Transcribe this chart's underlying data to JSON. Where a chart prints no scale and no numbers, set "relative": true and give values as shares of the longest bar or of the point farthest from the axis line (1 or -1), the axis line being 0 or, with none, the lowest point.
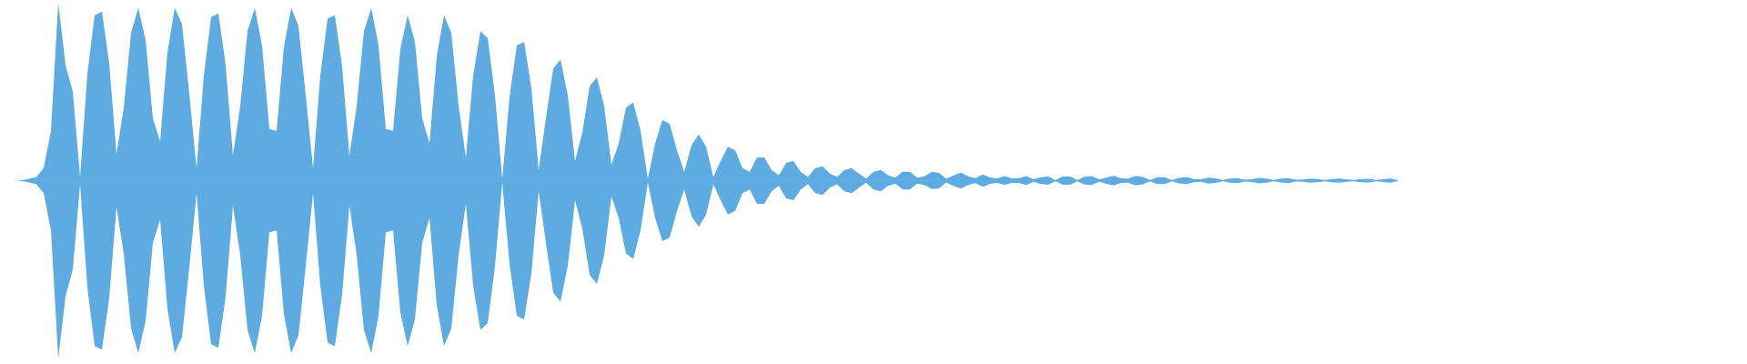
{
  "chart_data": {
    "type": "area",
    "relative": true,
    "tick_labels": false,
    "categories": [
      null,
      null,
      null,
      null,
      null,
      null,
      null,
      null,
      null,
      null,
      null,
      null,
      null,
      null,
      null,
      null,
      null,
      null,
      null,
      null,
      null,
      null,
      null,
      null,
      null,
      null,
      null,
      null,
      null,
      null,
      null,
      null,
      null,
      null,
      null,
      null,
      null,
      null,
      null,
      null,
      null,
      null,
      null,
      null,
      null,
      null,
      null,
      null,
      null,
      null,
      null,
      null,
      null,
      null,
      null,
      null,
      null,
      null,
      null,
      null,
      null,
      null,
      null,
      null,
      null,
      null,
      null,
      null,
      null,
      null,
      null,
      null,
      null,
      null,
      null,
      null,
      null,
      null,
      null,
      null,
      null,
      null,
      null,
      null,
      null,
      null,
      null,
      null,
      null,
      null,
      null,
      null,
      null,
      null,
      null,
      null,
      null,
      null,
      null,
      null,
      null,
      null,
      null,
      null,
      null,
      null,
      null,
      null,
      null,
      null,
      null,
      null,
      null,
      null,
      null,
      null,
      null,
      null,
      null,
      null,
      null,
      null,
      null,
      null,
      null,
      null,
      null,
      null,
      null,
      null,
      null,
      null,
      null,
      null,
      null,
      null,
      null,
      null,
      null,
      null,
      null,
      null,
      null,
      null,
      null,
      null,
      null,
      null,
      null,
      null,
      null,
      null,
      null,
      null,
      null,
      null,
      null,
      null,
      null,
      null,
      null,
      null,
      null,
      null,
      null,
      null,
      null,
      null,
      null,
      null,
      null,
      null,
      null,
      null,
      null,
      null,
      null,
      null,
      null,
      null,
      null,
      null,
      null,
      null,
      null,
      null,
      null,
      null,
      null,
      null
    ],
    "series": [
      {
        "color": "#5dabe1",
        "values": [
          0.003,
          0.01,
          0.02,
          0.07,
          0.28,
          1.0,
          0.65,
          0.5,
          0.02,
          0.6,
          0.93,
          0.95,
          0.66,
          0.15,
          0.41,
          0.83,
          0.97,
          0.79,
          0.35,
          0.22,
          0.72,
          0.97,
          0.88,
          0.49,
          0.07,
          0.59,
          0.92,
          0.94,
          0.65,
          0.14,
          0.42,
          0.84,
          0.97,
          0.76,
          0.29,
          0.28,
          0.75,
          0.97,
          0.87,
          0.48,
          0.07,
          0.59,
          0.91,
          0.93,
          0.64,
          0.14,
          0.42,
          0.84,
          0.97,
          0.76,
          0.29,
          0.28,
          0.74,
          0.93,
          0.78,
          0.35,
          0.21,
          0.7,
          0.93,
          0.83,
          0.42,
          0.13,
          0.59,
          0.84,
          0.8,
          0.48,
          0.01,
          0.47,
          0.76,
          0.78,
          0.52,
          0.06,
          0.35,
          0.63,
          0.68,
          0.48,
          0.11,
          0.27,
          0.53,
          0.58,
          0.42,
          0.09,
          0.21,
          0.41,
          0.44,
          0.28,
          0.01,
          0.21,
          0.34,
          0.32,
          0.17,
          0.05,
          0.2,
          0.26,
          0.19,
          0.02,
          0.11,
          0.19,
          0.17,
          0.07,
          0.05,
          0.13,
          0.13,
          0.06,
          0.03,
          0.1,
          0.11,
          0.05,
          0.02,
          0.07,
          0.08,
          0.04,
          0.02,
          0.06,
          0.07,
          0.04,
          0.012,
          0.05,
          0.06,
          0.03,
          0.017,
          0.05,
          0.05,
          0.017,
          0.024,
          0.048,
          0.043,
          0.01,
          0.029,
          0.045,
          0.024,
          0.014,
          0.035,
          0.018,
          0.013,
          0.025,
          0.013,
          0.014,
          0.025,
          0.007,
          0.019,
          0.023,
          0.004,
          0.023,
          0.023,
          0.004,
          0.022,
          0.025,
          0.006,
          0.018,
          0.027,
          0.013,
          0.012,
          0.027,
          0.02,
          0.004,
          0.019,
          0.019,
          0.004,
          0.015,
          0.02,
          0.009,
          0.007,
          0.017,
          0.013,
          0.004,
          0.012,
          0.014,
          0.005,
          0.008,
          0.015,
          0.011,
          0.004,
          0.012,
          0.014,
          0.005,
          0.006,
          0.012,
          0.009,
          0.004,
          0.009,
          0.012,
          0.007,
          0.004,
          0.009,
          0.01,
          0.004,
          0.008,
          0.012,
          0.003
        ]
      },
      {
        "color": "#5dabe1",
        "values": [
          -0.003,
          -0.01,
          -0.02,
          -0.07,
          -0.28,
          -1.0,
          -0.65,
          -0.5,
          -0.02,
          -0.6,
          -0.93,
          -0.95,
          -0.66,
          -0.15,
          -0.41,
          -0.83,
          -0.97,
          -0.79,
          -0.35,
          -0.22,
          -0.72,
          -0.97,
          -0.88,
          -0.49,
          -0.07,
          -0.59,
          -0.92,
          -0.94,
          -0.65,
          -0.14,
          -0.42,
          -0.84,
          -0.97,
          -0.76,
          -0.29,
          -0.28,
          -0.75,
          -0.97,
          -0.87,
          -0.48,
          -0.07,
          -0.59,
          -0.91,
          -0.93,
          -0.64,
          -0.14,
          -0.42,
          -0.84,
          -0.97,
          -0.76,
          -0.29,
          -0.28,
          -0.74,
          -0.93,
          -0.78,
          -0.35,
          -0.21,
          -0.7,
          -0.93,
          -0.83,
          -0.42,
          -0.13,
          -0.59,
          -0.84,
          -0.8,
          -0.48,
          -0.01,
          -0.47,
          -0.76,
          -0.78,
          -0.52,
          -0.06,
          -0.35,
          -0.63,
          -0.68,
          -0.48,
          -0.11,
          -0.27,
          -0.53,
          -0.58,
          -0.42,
          -0.09,
          -0.21,
          -0.41,
          -0.44,
          -0.28,
          -0.01,
          -0.21,
          -0.34,
          -0.32,
          -0.17,
          -0.05,
          -0.2,
          -0.26,
          -0.19,
          -0.02,
          -0.11,
          -0.19,
          -0.17,
          -0.07,
          -0.05,
          -0.13,
          -0.13,
          -0.06,
          -0.03,
          -0.1,
          -0.11,
          -0.05,
          -0.02,
          -0.07,
          -0.08,
          -0.04,
          -0.02,
          -0.06,
          -0.07,
          -0.04,
          -0.012,
          -0.05,
          -0.06,
          -0.03,
          -0.017,
          -0.05,
          -0.05,
          -0.017,
          -0.024,
          -0.048,
          -0.043,
          -0.01,
          -0.029,
          -0.045,
          -0.024,
          -0.014,
          -0.035,
          -0.018,
          -0.013,
          -0.025,
          -0.013,
          -0.014,
          -0.025,
          -0.007,
          -0.019,
          -0.023,
          -0.004,
          -0.023,
          -0.023,
          -0.004,
          -0.022,
          -0.025,
          -0.006,
          -0.018,
          -0.027,
          -0.013,
          -0.012,
          -0.027,
          -0.02,
          -0.004,
          -0.019,
          -0.019,
          -0.004,
          -0.015,
          -0.02,
          -0.009,
          -0.007,
          -0.017,
          -0.013,
          -0.004,
          -0.012,
          -0.014,
          -0.005,
          -0.008,
          -0.015,
          -0.011,
          -0.004,
          -0.012,
          -0.014,
          -0.005,
          -0.006,
          -0.012,
          -0.009,
          -0.004,
          -0.009,
          -0.012,
          -0.007,
          -0.004,
          -0.009,
          -0.01,
          -0.004,
          -0.008,
          -0.012,
          -0.003
        ]
      }
    ]
  }
}
